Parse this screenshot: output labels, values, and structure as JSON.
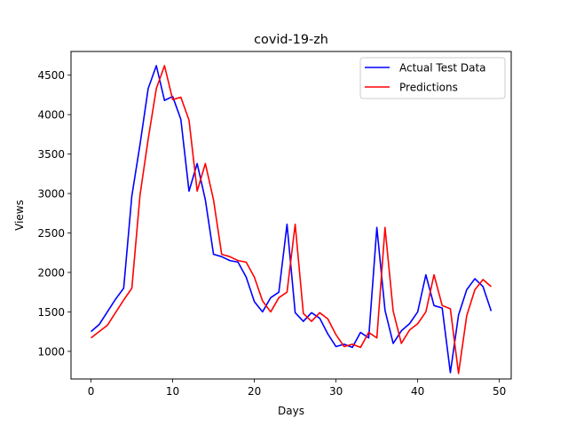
{
  "chart_data": {
    "type": "line",
    "title": "covid-19-zh",
    "xlabel": "Days",
    "ylabel": "Views",
    "xlim": [
      -2.45,
      51.45
    ],
    "ylim": [
      650,
      4800
    ],
    "xticks": [
      0,
      10,
      20,
      30,
      40,
      50
    ],
    "yticks": [
      1000,
      1500,
      2000,
      2500,
      3000,
      3500,
      4000,
      4500
    ],
    "grid": false,
    "legend_position": "top-right",
    "x": [
      0,
      1,
      2,
      3,
      4,
      5,
      6,
      7,
      8,
      9,
      10,
      11,
      12,
      13,
      14,
      15,
      16,
      17,
      18,
      19,
      20,
      21,
      22,
      23,
      24,
      25,
      26,
      27,
      28,
      29,
      30,
      31,
      32,
      33,
      34,
      35,
      36,
      37,
      38,
      39,
      40,
      41,
      42,
      43,
      44,
      45,
      46,
      47,
      48,
      49
    ],
    "series": [
      {
        "name": "Actual Test Data",
        "color": "#0000ff",
        "values": [
          1250,
          1340,
          1500,
          1660,
          1800,
          2970,
          3620,
          4330,
          4620,
          4180,
          4230,
          3940,
          3030,
          3380,
          2920,
          2230,
          2200,
          2150,
          2130,
          1940,
          1630,
          1500,
          1680,
          1750,
          2610,
          1490,
          1380,
          1490,
          1420,
          1220,
          1060,
          1090,
          1050,
          1240,
          1170,
          2570,
          1520,
          1100,
          1260,
          1350,
          1500,
          1970,
          1580,
          1550,
          730,
          1460,
          1780,
          1920,
          1820,
          1510
        ]
      },
      {
        "name": "Predictions",
        "color": "#ff0000",
        "values": [
          1170,
          1250,
          1330,
          1490,
          1650,
          1800,
          2980,
          3690,
          4330,
          4620,
          4190,
          4220,
          3930,
          3030,
          3380,
          2920,
          2230,
          2200,
          2150,
          2130,
          1940,
          1640,
          1500,
          1680,
          1750,
          2610,
          1480,
          1380,
          1490,
          1410,
          1210,
          1060,
          1090,
          1050,
          1240,
          1170,
          2570,
          1510,
          1100,
          1270,
          1350,
          1500,
          1970,
          1580,
          1540,
          720,
          1450,
          1780,
          1910,
          1820
        ]
      }
    ]
  }
}
